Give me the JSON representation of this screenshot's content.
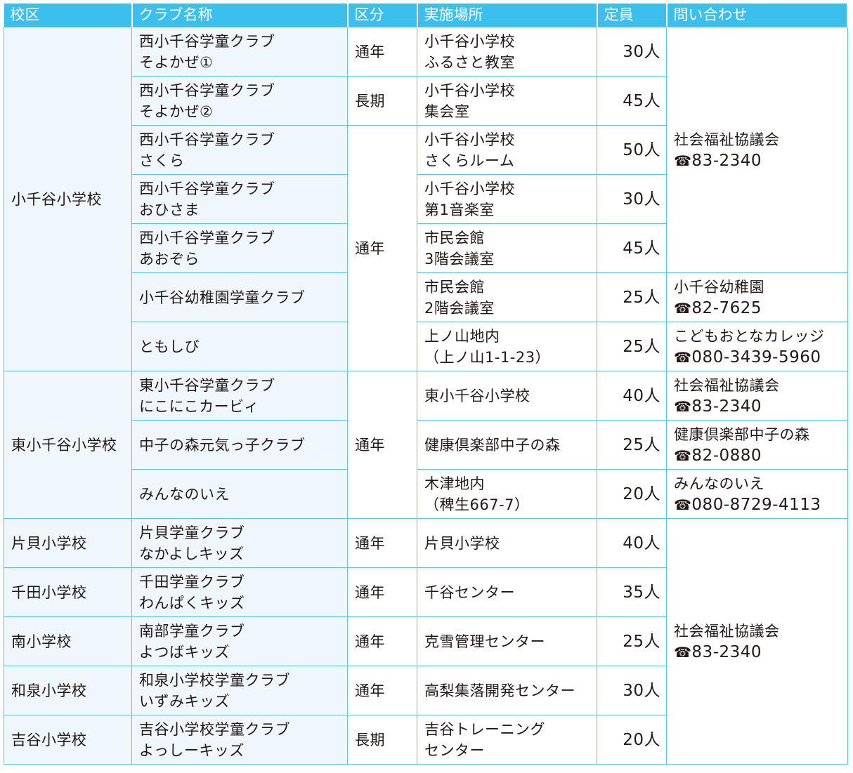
{
  "colors": {
    "header": "#3dbfee",
    "border": "#5cc3ea",
    "tint": "#eff7fd"
  },
  "headers": [
    "校区",
    "クラブ名称",
    "区分",
    "実施場所",
    "定員",
    "問い合わせ"
  ],
  "phone_icon": "telephone-icon",
  "rows": [
    {
      "school": "小千谷小学校",
      "club": "西小千谷学童クラブ\nそよかぜ①",
      "type": "通年",
      "place": "小千谷小学校\nふるさと教室",
      "capacity": "30人",
      "contact": {
        "name": "社会福祉協議会",
        "phone": "83-2340"
      }
    },
    {
      "school": null,
      "club": "西小千谷学童クラブ\nそよかぜ②",
      "type": "長期",
      "place": "小千谷小学校\n集会室",
      "capacity": "45人",
      "contact": null
    },
    {
      "school": null,
      "club": "西小千谷学童クラブ\nさくら",
      "type": "通年",
      "place": "小千谷小学校\nさくらルーム",
      "capacity": "50人",
      "contact": null
    },
    {
      "school": null,
      "club": "西小千谷学童クラブ\nおひさま",
      "type": null,
      "place": "小千谷小学校\n第1音楽室",
      "capacity": "30人",
      "contact": null
    },
    {
      "school": null,
      "club": "西小千谷学童クラブ\nあおぞら",
      "type": null,
      "place": "市民会館\n3階会議室",
      "capacity": "45人",
      "contact": null
    },
    {
      "school": null,
      "club": "小千谷幼稚園学童クラブ",
      "type": null,
      "place": "市民会館\n2階会議室",
      "capacity": "25人",
      "contact": {
        "name": "小千谷幼稚園",
        "phone": "82-7625"
      }
    },
    {
      "school": null,
      "club": "ともしび",
      "type": null,
      "place": "上ノ山地内\n（上ノ山1-1-23）",
      "capacity": "25人",
      "contact": {
        "name": "こどもおとなカレッジ",
        "phone": "080-3439-5960"
      }
    },
    {
      "school": "東小千谷小学校",
      "club": "東小千谷学童クラブ\nにこにこカービィ",
      "type": "通年",
      "place": "東小千谷小学校",
      "capacity": "40人",
      "contact": {
        "name": "社会福祉協議会",
        "phone": "83-2340"
      }
    },
    {
      "school": null,
      "club": "中子の森元気っ子クラブ",
      "type": null,
      "place": "健康倶楽部中子の森",
      "capacity": "25人",
      "contact": {
        "name": "健康倶楽部中子の森",
        "phone": "82-0880"
      }
    },
    {
      "school": null,
      "club": "みんなのいえ",
      "type": null,
      "place": "木津地内\n（稗生667-7）",
      "capacity": "20人",
      "contact": {
        "name": "みんなのいえ",
        "phone": "080-8729-4113"
      }
    },
    {
      "school": "片貝小学校",
      "club": "片貝学童クラブ\nなかよしキッズ",
      "type": "通年",
      "place": "片貝小学校",
      "capacity": "40人",
      "contact": {
        "name": "社会福祉協議会",
        "phone": "83-2340"
      }
    },
    {
      "school": "千田小学校",
      "club": "千田学童クラブ\nわんぱくキッズ",
      "type": "通年",
      "place": "千谷センター",
      "capacity": "35人",
      "contact": null
    },
    {
      "school": "南小学校",
      "club": "南部学童クラブ\nよつばキッズ",
      "type": "通年",
      "place": "克雪管理センター",
      "capacity": "25人",
      "contact": null
    },
    {
      "school": "和泉小学校",
      "club": "和泉小学校学童クラブ\nいずみキッズ",
      "type": "通年",
      "place": "高梨集落開発センター",
      "capacity": "30人",
      "contact": null
    },
    {
      "school": "吉谷小学校",
      "club": "吉谷小学校学童クラブ\nよっしーキッズ",
      "type": "長期",
      "place": "吉谷トレーニング\nセンター",
      "capacity": "20人",
      "contact": null
    }
  ]
}
